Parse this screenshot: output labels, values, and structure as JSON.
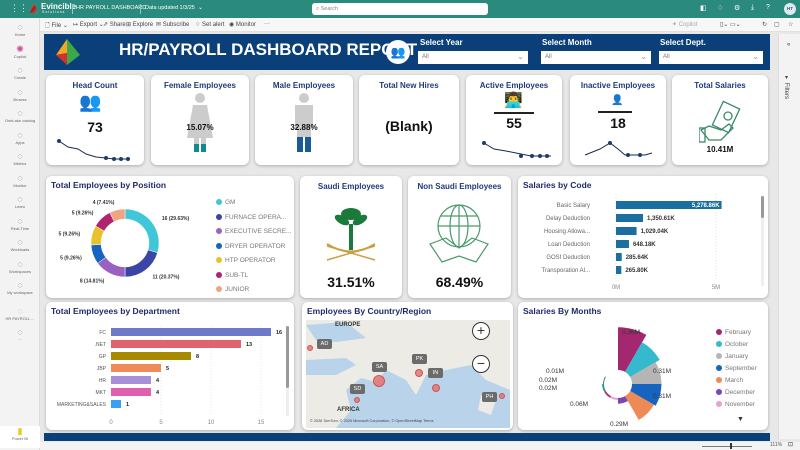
{
  "topbar": {
    "brand": "Evincible",
    "brand_sub": "Solutions",
    "report_name": "HR PAYROLL DASHBOARD",
    "data_updated": "Data updated 1/3/25",
    "search_placeholder": "Search",
    "avatar": "HT"
  },
  "toolbar": {
    "file": "File",
    "export": "Export",
    "share": "Share",
    "explore": "Explore",
    "subscribe": "Subscribe",
    "set_alert": "Set alert",
    "monitor": "Monitor",
    "more": "···",
    "copilot": "Copilot"
  },
  "rail": [
    {
      "label": "Home",
      "icon": "home-icon"
    },
    {
      "label": "Copilot",
      "icon": "copilot-icon"
    },
    {
      "label": "Create",
      "icon": "plus-icon"
    },
    {
      "label": "Browse",
      "icon": "folder-icon"
    },
    {
      "label": "OneLake catalog",
      "icon": "onelake-icon"
    },
    {
      "label": "Apps",
      "icon": "apps-icon"
    },
    {
      "label": "Metrics",
      "icon": "trophy-icon"
    },
    {
      "label": "Monitor",
      "icon": "monitor-icon"
    },
    {
      "label": "Learn",
      "icon": "book-icon"
    },
    {
      "label": "Real-Time",
      "icon": "lightning-icon"
    },
    {
      "label": "Workloads",
      "icon": "workloads-icon"
    },
    {
      "label": "Workspaces",
      "icon": "workspaces-icon"
    },
    {
      "label": "My workspace",
      "icon": "my-workspace-icon"
    },
    {
      "label": "HR PAYROLL ...",
      "icon": "report-icon"
    },
    {
      "label": "···",
      "icon": "more-icon"
    }
  ],
  "rail_footer": "Power BI",
  "filters_label": "Filters",
  "banner": {
    "title": "HR/PAYROLL DASHBOARD REPORT"
  },
  "slicers": [
    {
      "label": "Select Year",
      "value": "All"
    },
    {
      "label": "Select Month",
      "value": "All"
    },
    {
      "label": "Select Dept.",
      "value": "All"
    }
  ],
  "kpis": {
    "head_count": {
      "title": "Head Count",
      "value": "73"
    },
    "female": {
      "title": "Female Employees",
      "value": "15.07%"
    },
    "male": {
      "title": "Male Employees",
      "value": "32.88%"
    },
    "new_hires": {
      "title": "Total New Hires",
      "value": "(Blank)"
    },
    "active": {
      "title": "Active Employees",
      "value": "55"
    },
    "inactive": {
      "title": "Inactive Employees",
      "value": "18"
    },
    "salaries": {
      "title": "Total Salaries",
      "value": "10.41M"
    }
  },
  "saudi": {
    "title": "Saudi Employees",
    "value": "31.51%"
  },
  "non_saudi": {
    "title": "Non Saudi Employees",
    "value": "68.49%"
  },
  "map": {
    "title": "Employees By Country/Region",
    "regions": [
      "EUROPE",
      "AFRICA"
    ],
    "countries": [
      "AD",
      "SA",
      "PK",
      "IN",
      "SD",
      "PH"
    ],
    "attribution": "© 2026 TomTom, © 2026 Microsoft Corporation, © OpenStreetMap  Terms"
  },
  "chart_data": [
    {
      "type": "pie",
      "title": "Total Employees by Position",
      "categories": [
        "GM",
        "FURNACE OPERA...",
        "EXECUTIVE SECRE...",
        "DRYER OPERATOR",
        "HTP OPERATOR",
        "SUB-TL",
        "JUNIOR"
      ],
      "values": [
        16,
        11,
        8,
        5,
        5,
        5,
        4
      ],
      "data_labels": [
        "16 (29.63%)",
        "11 (20.37%)",
        "8 (14.81%)",
        "5 (9.26%)",
        "5 (9.26%)",
        "5 (9.26%)",
        "4 (7.41%)"
      ],
      "colors": [
        "#3fc6d8",
        "#3a46a6",
        "#9a62c0",
        "#1565c0",
        "#e8c22a",
        "#b0236f",
        "#f0a480"
      ],
      "legend": "right"
    },
    {
      "type": "bar",
      "title": "Salaries by Code",
      "categories": [
        "Basic Salary",
        "Delay Deduction",
        "Housing Allowa...",
        "Loan Deduction",
        "GOSI Deduction",
        "Transporation Al..."
      ],
      "values": [
        5278.86,
        1350.61,
        1029.04,
        648.18,
        285.64,
        265.8
      ],
      "data_labels": [
        "5,278.86K",
        "1,350.61K",
        "1,029.04K",
        "648.18K",
        "285.64K",
        "265.80K"
      ],
      "xticks": [
        "0M",
        "5M"
      ],
      "unit": "K",
      "xlim": [
        0,
        5000
      ],
      "color": "#1a6fa0"
    },
    {
      "type": "bar",
      "title": "Total Employees by Department",
      "categories": [
        "FC",
        ".NET",
        "GP",
        "JBP",
        "HR",
        "MKT",
        "MARKETING&SALES"
      ],
      "values": [
        16,
        13,
        8,
        5,
        4,
        4,
        1
      ],
      "colors": [
        "#6f79c9",
        "#e0646e",
        "#a88a00",
        "#f08a5a",
        "#a890d8",
        "#e060b0",
        "#3aa0f0"
      ],
      "xticks": [
        "0",
        "5",
        "10",
        "15"
      ],
      "xlim": [
        0,
        17
      ]
    },
    {
      "type": "pie",
      "title": "Salaries By Months",
      "categories": [
        "February",
        "October",
        "January",
        "September",
        "March",
        "December",
        "November",
        "",
        "",
        ""
      ],
      "values": [
        0.45,
        0.36,
        0.31,
        0.31,
        0.29,
        0.06,
        0.02,
        0.02,
        0.02,
        0.01
      ],
      "data_labels": [
        "",
        "0.36M",
        "0.31M",
        "0.31M",
        "0.29M",
        "0.06M",
        "",
        "0.02M",
        "0.02M",
        "0.01M"
      ],
      "colors": [
        "#a3286f",
        "#35b9cc",
        "#b5b5b5",
        "#1565c0",
        "#ee8a55",
        "#7a45b8",
        "#e8a0d0",
        "#c03060",
        "#2a9a8a",
        "#3a7a4a"
      ],
      "legend": "right"
    }
  ],
  "status": {
    "zoom": "111%"
  }
}
